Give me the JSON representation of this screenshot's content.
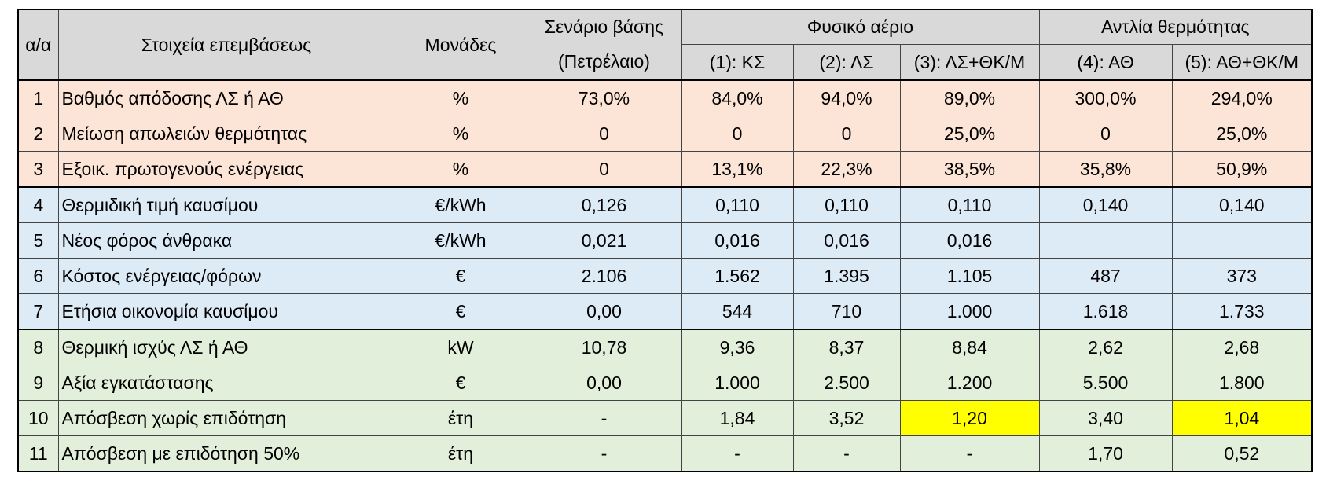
{
  "header": {
    "index": "α/α",
    "item": "Στοιχεία επεμβάσεως",
    "units": "Μονάδες",
    "base": [
      "Σενάριο βάσης",
      "(Πετρέλαιο)"
    ],
    "groups": [
      "Φυσικό αέριο",
      "Αντλία θερμότητας"
    ],
    "subheaders": [
      "(1): ΚΣ",
      "(2): ΛΣ",
      "(3): ΛΣ+ΘΚ/Μ",
      "(4): ΑΘ",
      "(5): ΑΘ+ΘΚ/Μ"
    ]
  },
  "table": {
    "rows": [
      [
        "1",
        "Βαθμός απόδοσης ΛΣ ή ΑΘ",
        "%",
        "73,0%",
        "84,0%",
        "94,0%",
        "89,0%",
        "300,0%",
        "294,0%"
      ],
      [
        "2",
        "Μείωση απωλειών θερμότητας",
        "%",
        "0",
        "0",
        "0",
        "25,0%",
        "0",
        "25,0%"
      ],
      [
        "3",
        "Εξοικ. πρωτογενούς ενέργειας",
        "%",
        "0",
        "13,1%",
        "22,3%",
        "38,5%",
        "35,8%",
        "50,9%"
      ],
      [
        "4",
        "Θερμιδική τιμή καυσίμου",
        "€/kWh",
        "0,126",
        "0,110",
        "0,110",
        "0,110",
        "0,140",
        "0,140"
      ],
      [
        "5",
        "Νέος φόρος άνθρακα",
        "€/kWh",
        "0,021",
        "0,016",
        "0,016",
        "0,016",
        null,
        null
      ],
      [
        "6",
        "Κόστος ενέργειας/φόρων",
        "€",
        "2.106",
        "1.562",
        "1.395",
        "1.105",
        "487",
        "373"
      ],
      [
        "7",
        "Ετήσια οικονομία καυσίμου",
        "€",
        "0,00",
        "544",
        "710",
        "1.000",
        "1.618",
        "1.733"
      ],
      [
        "8",
        "Θερμική ισχύς  ΛΣ ή ΑΘ",
        "kW",
        "10,78",
        "9,36",
        "8,37",
        "8,84",
        "2,62",
        "2,68"
      ],
      [
        "9",
        "Αξία εγκατάστασης",
        "€",
        "0,00",
        "1.000",
        "2.500",
        "1.200",
        "5.500",
        "1.800"
      ],
      [
        "10",
        "Απόσβεση χωρίς επιδότηση",
        "έτη",
        "-",
        "1,84",
        "3,52",
        "1,20",
        "3,40",
        "1,04"
      ],
      [
        "11",
        "Απόσβεση με επιδότηση 50%",
        "έτη",
        "-",
        "-",
        "-",
        "-",
        "1,70",
        "0,52"
      ]
    ]
  }
}
